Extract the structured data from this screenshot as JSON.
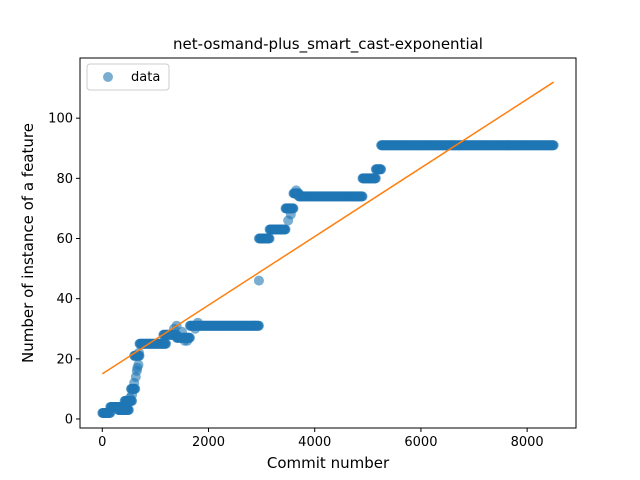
{
  "chart_data": {
    "type": "scatter",
    "title": "net-osmand-plus_smart_cast-exponential",
    "xlabel": "Commit number",
    "ylabel": "Number of instance of a feature",
    "xlim": [
      -420,
      8920
    ],
    "ylim": [
      -3,
      120
    ],
    "xticks": [
      0,
      2000,
      4000,
      6000,
      8000
    ],
    "yticks": [
      0,
      20,
      40,
      60,
      80,
      100
    ],
    "legend": {
      "position": "top-left",
      "entries": [
        "data"
      ]
    },
    "colors": {
      "data": "#1f77b4",
      "fit": "#ff7f0e"
    },
    "series": [
      {
        "name": "data",
        "kind": "scatter",
        "steps": [
          [
            0,
            150,
            2
          ],
          [
            150,
            400,
            4
          ],
          [
            300,
            500,
            3
          ],
          [
            420,
            560,
            6
          ],
          [
            540,
            620,
            10
          ],
          [
            600,
            700,
            21
          ],
          [
            700,
            1200,
            25
          ],
          [
            1150,
            1400,
            28
          ],
          [
            1400,
            1650,
            27
          ],
          [
            1650,
            2950,
            31
          ],
          [
            2950,
            3150,
            60
          ],
          [
            3150,
            3450,
            63
          ],
          [
            3450,
            3600,
            70
          ],
          [
            3600,
            3700,
            75
          ],
          [
            3700,
            4900,
            74
          ],
          [
            4900,
            5150,
            80
          ],
          [
            5150,
            5250,
            83
          ],
          [
            5250,
            8500,
            91
          ]
        ],
        "extra_points": [
          [
            350,
            4
          ],
          [
            480,
            5
          ],
          [
            520,
            7
          ],
          [
            560,
            8
          ],
          [
            600,
            12
          ],
          [
            630,
            14
          ],
          [
            650,
            16
          ],
          [
            660,
            17
          ],
          [
            680,
            18
          ],
          [
            690,
            22
          ],
          [
            1350,
            30
          ],
          [
            1400,
            31
          ],
          [
            1500,
            29
          ],
          [
            1550,
            26
          ],
          [
            1600,
            26
          ],
          [
            1750,
            30
          ],
          [
            1800,
            32
          ],
          [
            2950,
            46
          ],
          [
            3500,
            66
          ],
          [
            3550,
            68
          ],
          [
            3650,
            76
          ]
        ]
      },
      {
        "name": "fit",
        "kind": "line",
        "x": [
          0,
          8500
        ],
        "y": [
          15,
          112
        ]
      }
    ]
  }
}
